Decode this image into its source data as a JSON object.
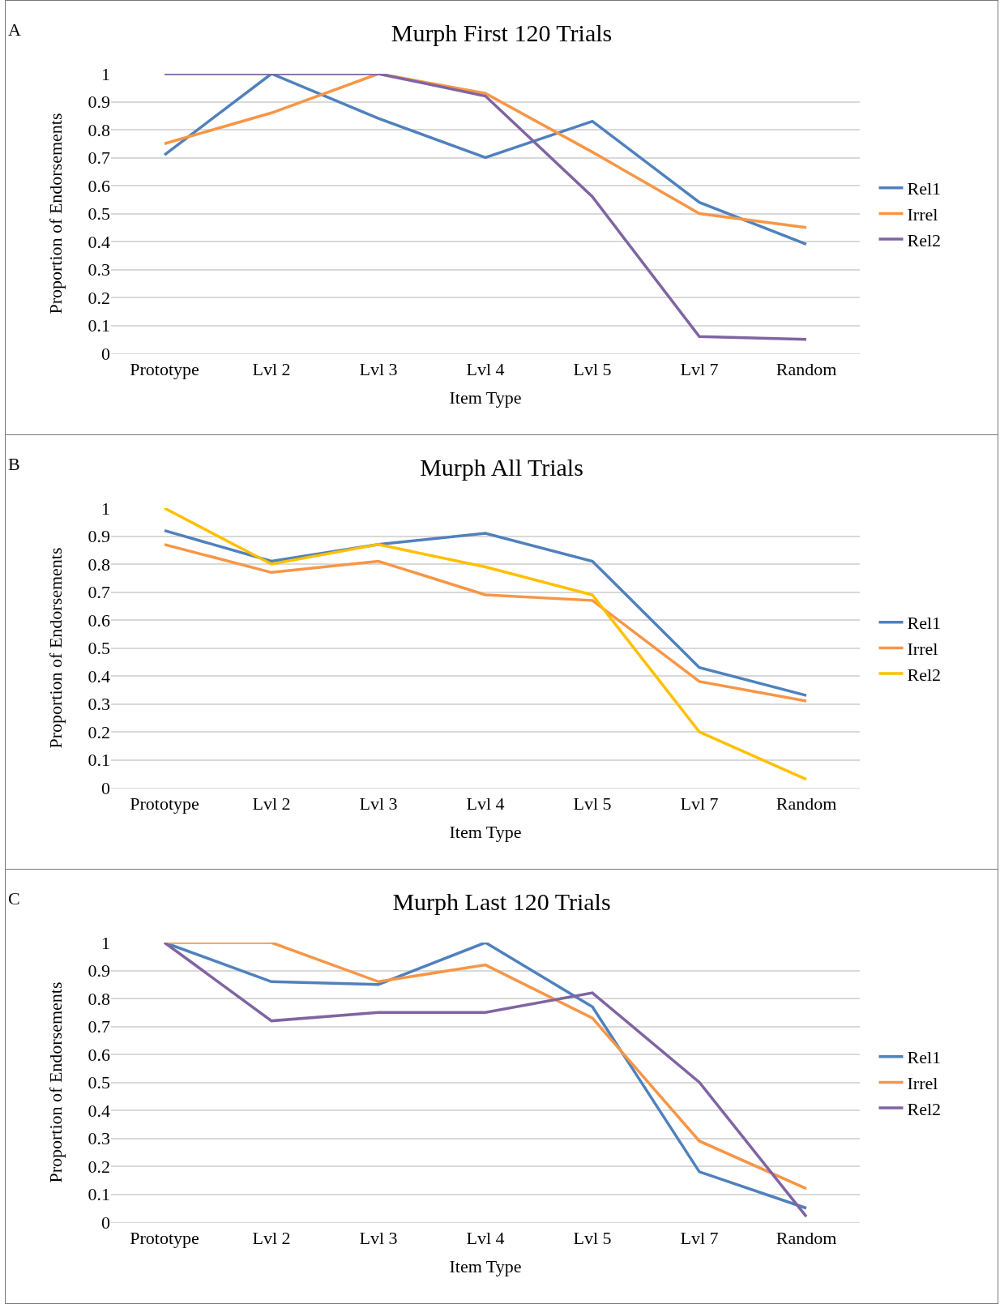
{
  "chart_data": [
    {
      "type": "line",
      "title": "Murph First 120 Trials",
      "xlabel": "Item Type",
      "ylabel": "Proportion of Endorsements",
      "annotations": [
        "A"
      ],
      "categories": [
        "Prototype",
        "Lvl 2",
        "Lvl 3",
        "Lvl 4",
        "Lvl 5",
        "Lvl 7",
        "Random"
      ],
      "ylim": [
        0,
        1
      ],
      "yticks": [
        0,
        0.1,
        0.2,
        0.3,
        0.4,
        0.5,
        0.6,
        0.7,
        0.8,
        0.9,
        1
      ],
      "grid": "y",
      "legend": "right",
      "marker": "none",
      "line_style": "solid",
      "series": [
        {
          "name": "Rel1",
          "color": "#4f81bd",
          "values": [
            0.71,
            1.0,
            0.84,
            0.7,
            0.83,
            0.54,
            0.39
          ]
        },
        {
          "name": "Irrel",
          "color": "#f79646",
          "values": [
            0.75,
            0.86,
            1.0,
            0.93,
            0.72,
            0.5,
            0.45
          ]
        },
        {
          "name": "Rel2",
          "color": "#8064a2",
          "values": [
            1.0,
            1.0,
            1.0,
            0.92,
            0.56,
            0.06,
            0.05
          ]
        }
      ]
    },
    {
      "type": "line",
      "title": "Murph All Trials",
      "xlabel": "Item Type",
      "ylabel": "Proportion of Endorsements",
      "annotations": [
        "B"
      ],
      "categories": [
        "Prototype",
        "Lvl 2",
        "Lvl 3",
        "Lvl 4",
        "Lvl 5",
        "Lvl 7",
        "Random"
      ],
      "ylim": [
        0,
        1
      ],
      "yticks": [
        0,
        0.1,
        0.2,
        0.3,
        0.4,
        0.5,
        0.6,
        0.7,
        0.8,
        0.9,
        1
      ],
      "grid": "y",
      "legend": "right",
      "marker": "none",
      "line_style": "solid",
      "series": [
        {
          "name": "Rel1",
          "color": "#4f81bd",
          "values": [
            0.92,
            0.81,
            0.87,
            0.91,
            0.81,
            0.43,
            0.33
          ]
        },
        {
          "name": "Irrel",
          "color": "#f79646",
          "values": [
            0.87,
            0.77,
            0.81,
            0.69,
            0.67,
            0.38,
            0.31
          ]
        },
        {
          "name": "Rel2",
          "color": "#ffc000",
          "values": [
            1.0,
            0.8,
            0.87,
            0.79,
            0.69,
            0.2,
            0.03
          ]
        }
      ]
    },
    {
      "type": "line",
      "title": "Murph Last 120 Trials",
      "xlabel": "Item Type",
      "ylabel": "Proportion of Endorsements",
      "annotations": [
        "C"
      ],
      "categories": [
        "Prototype",
        "Lvl 2",
        "Lvl 3",
        "Lvl 4",
        "Lvl 5",
        "Lvl 7",
        "Random"
      ],
      "ylim": [
        0,
        1
      ],
      "yticks": [
        0,
        0.1,
        0.2,
        0.3,
        0.4,
        0.5,
        0.6,
        0.7,
        0.8,
        0.9,
        1
      ],
      "grid": "y",
      "legend": "right",
      "marker": "none",
      "line_style": "solid",
      "series": [
        {
          "name": "Rel1",
          "color": "#4f81bd",
          "values": [
            1.0,
            0.86,
            0.85,
            1.0,
            0.77,
            0.18,
            0.05
          ]
        },
        {
          "name": "Irrel",
          "color": "#f79646",
          "values": [
            1.0,
            1.0,
            0.86,
            0.92,
            0.73,
            0.29,
            0.12
          ]
        },
        {
          "name": "Rel2",
          "color": "#8064a2",
          "values": [
            1.0,
            0.72,
            0.75,
            0.75,
            0.82,
            0.5,
            0.02
          ]
        }
      ]
    }
  ]
}
